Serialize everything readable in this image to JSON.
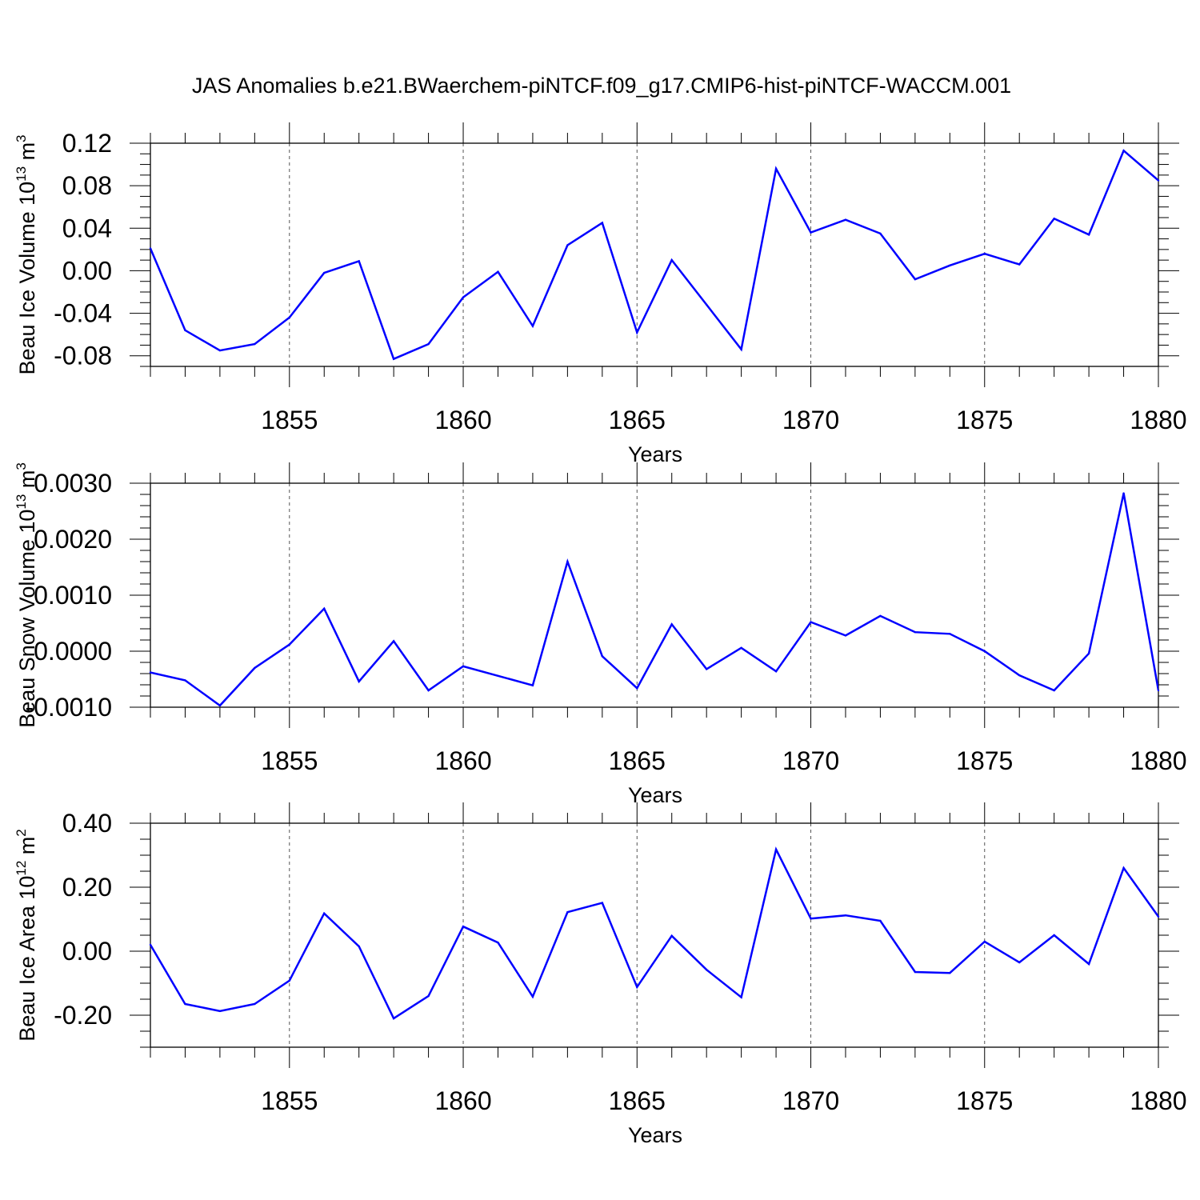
{
  "figure_title": "JAS Anomalies b.e21.BWaerchem-piNTCF.f09_g17.CMIP6-hist-piNTCF-WACCM.001",
  "colors": {
    "line": "#0000ff",
    "axis": "#000000",
    "grid": "#555555"
  },
  "chart_data": [
    {
      "type": "line",
      "title": "",
      "xlabel": "Years",
      "ylabel_main": "Beau Ice Volume 10",
      "ylabel_exp": "13",
      "ylabel_unit": " m",
      "ylabel_unit_exp": "3",
      "xlim": [
        1851,
        1880
      ],
      "ylim": [
        -0.09,
        0.12
      ],
      "xticks": [
        1855,
        1860,
        1865,
        1870,
        1875,
        1880
      ],
      "xtick_labels": [
        "1855",
        "1860",
        "1865",
        "1870",
        "1875",
        "1880"
      ],
      "yticks": [
        -0.08,
        -0.04,
        0.0,
        0.04,
        0.08,
        0.12
      ],
      "ytick_labels": [
        "-0.08",
        "-0.04",
        "0.00",
        "0.04",
        "0.08",
        "0.12"
      ],
      "yminor_step": 0.01,
      "grid": "vertical dashed at major x ticks",
      "x": [
        1851,
        1852,
        1853,
        1854,
        1855,
        1856,
        1857,
        1858,
        1859,
        1860,
        1861,
        1862,
        1863,
        1864,
        1865,
        1866,
        1867,
        1868,
        1869,
        1870,
        1871,
        1872,
        1873,
        1874,
        1875,
        1876,
        1877,
        1878,
        1879,
        1880
      ],
      "values": [
        0.021,
        -0.056,
        -0.075,
        -0.069,
        -0.044,
        -0.002,
        0.009,
        -0.083,
        -0.069,
        -0.025,
        -0.001,
        -0.052,
        0.024,
        0.045,
        -0.058,
        0.01,
        -0.032,
        -0.074,
        0.096,
        0.036,
        0.048,
        0.035,
        -0.008,
        0.005,
        0.016,
        0.006,
        0.049,
        0.034,
        0.113,
        0.085
      ]
    },
    {
      "type": "line",
      "title": "",
      "xlabel": "Years",
      "ylabel_main": "Beau Snow Volume 10",
      "ylabel_exp": "13",
      "ylabel_unit": " m",
      "ylabel_unit_exp": "3",
      "xlim": [
        1851,
        1880
      ],
      "ylim": [
        -0.001,
        0.003
      ],
      "xticks": [
        1855,
        1860,
        1865,
        1870,
        1875,
        1880
      ],
      "xtick_labels": [
        "1855",
        "1860",
        "1865",
        "1870",
        "1875",
        "1880"
      ],
      "yticks": [
        -0.001,
        0.0,
        0.001,
        0.002,
        0.003
      ],
      "ytick_labels": [
        "-0.0010",
        "0.0000",
        "0.0010",
        "0.0020",
        "0.0030"
      ],
      "yminor_step": 0.0002,
      "grid": "vertical dashed at major x ticks",
      "x": [
        1851,
        1852,
        1853,
        1854,
        1855,
        1856,
        1857,
        1858,
        1859,
        1860,
        1861,
        1862,
        1863,
        1864,
        1865,
        1866,
        1867,
        1868,
        1869,
        1870,
        1871,
        1872,
        1873,
        1874,
        1875,
        1876,
        1877,
        1878,
        1879,
        1880
      ],
      "values": [
        -0.00038,
        -0.00052,
        -0.00097,
        -0.0003,
        0.00012,
        0.00076,
        -0.00054,
        0.00018,
        -0.0007,
        -0.00027,
        -0.00044,
        -0.00061,
        0.0016,
        -9e-05,
        -0.00066,
        0.00048,
        -0.00032,
        6e-05,
        -0.00036,
        0.00052,
        0.00028,
        0.00063,
        0.00034,
        0.00031,
        0.0,
        -0.00043,
        -0.0007,
        -4e-05,
        0.00282,
        -0.0007
      ]
    },
    {
      "type": "line",
      "title": "",
      "xlabel": "Years",
      "ylabel_main": "Beau Ice Area 10",
      "ylabel_exp": "12",
      "ylabel_unit": " m",
      "ylabel_unit_exp": "2",
      "xlim": [
        1851,
        1880
      ],
      "ylim": [
        -0.3,
        0.4
      ],
      "xticks": [
        1855,
        1860,
        1865,
        1870,
        1875,
        1880
      ],
      "xtick_labels": [
        "1855",
        "1860",
        "1865",
        "1870",
        "1875",
        "1880"
      ],
      "yticks": [
        -0.2,
        0.0,
        0.2,
        0.4
      ],
      "ytick_labels": [
        "-0.20",
        "0.00",
        "0.20",
        "0.40"
      ],
      "yminor_step": 0.05,
      "grid": "vertical dashed at major x ticks",
      "x": [
        1851,
        1852,
        1853,
        1854,
        1855,
        1856,
        1857,
        1858,
        1859,
        1860,
        1861,
        1862,
        1863,
        1864,
        1865,
        1866,
        1867,
        1868,
        1869,
        1870,
        1871,
        1872,
        1873,
        1874,
        1875,
        1876,
        1877,
        1878,
        1879,
        1880
      ],
      "values": [
        0.02,
        -0.165,
        -0.187,
        -0.165,
        -0.092,
        0.118,
        0.015,
        -0.21,
        -0.14,
        0.077,
        0.027,
        -0.142,
        0.122,
        0.151,
        -0.112,
        0.048,
        -0.058,
        -0.144,
        0.318,
        0.102,
        0.112,
        0.095,
        -0.065,
        -0.068,
        0.03,
        -0.035,
        0.05,
        -0.04,
        0.26,
        0.108
      ]
    }
  ]
}
